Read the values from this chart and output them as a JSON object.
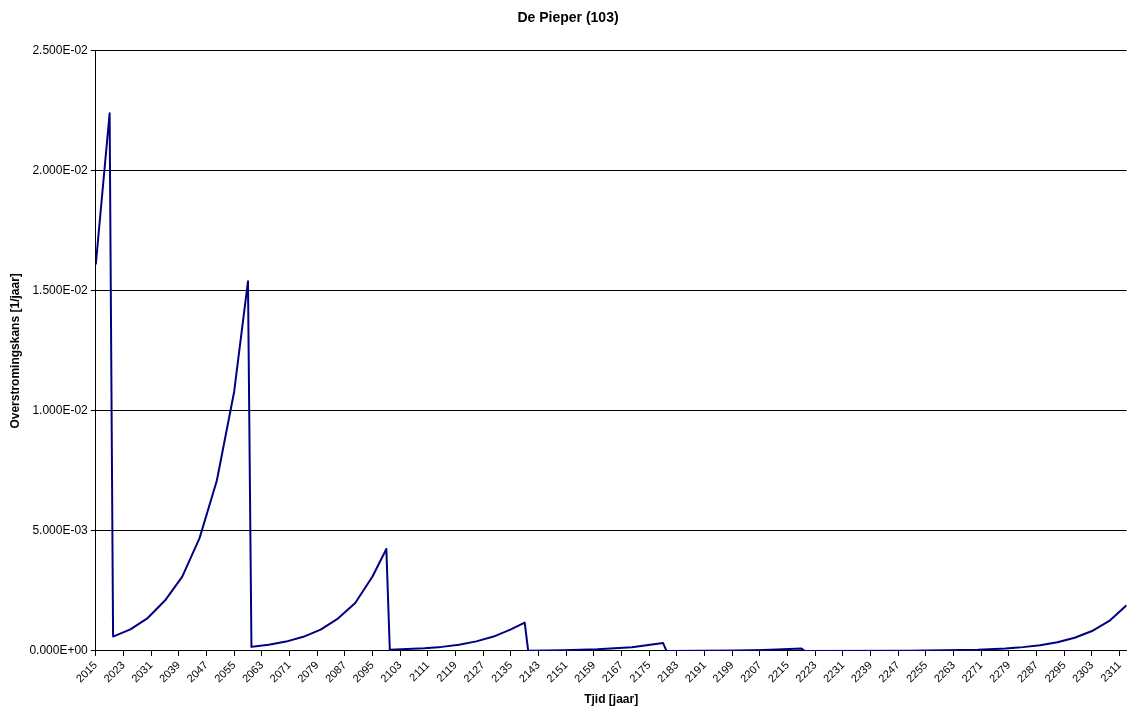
{
  "chart_data": {
    "type": "line",
    "title": "De Pieper (103)",
    "xlabel": "Tjid [jaar]",
    "ylabel": "Overstromingskans [1/jaar]",
    "x": [
      2015,
      2019,
      2020,
      2025,
      2030,
      2035,
      2040,
      2045,
      2050,
      2055,
      2059,
      2060,
      2065,
      2070,
      2075,
      2080,
      2085,
      2090,
      2095,
      2099,
      2100,
      2105,
      2110,
      2115,
      2120,
      2125,
      2130,
      2135,
      2139,
      2140,
      2150,
      2160,
      2170,
      2179,
      2180,
      2200,
      2210,
      2219,
      2220,
      2250,
      2270,
      2278,
      2283,
      2288,
      2293,
      2298,
      2303,
      2308,
      2313
    ],
    "series": [
      {
        "color": "#000080",
        "values": [
          0.0161,
          0.0224,
          0.0006,
          0.0009,
          0.00137,
          0.0021,
          0.0031,
          0.0047,
          0.0071,
          0.0108,
          0.0154,
          0.00017,
          0.00026,
          0.00039,
          0.00059,
          0.00089,
          0.00135,
          0.002,
          0.0031,
          0.00425,
          5e-05,
          8e-05,
          0.00011,
          0.00017,
          0.00026,
          0.0004,
          0.0006,
          0.0009,
          0.00118,
          1e-05,
          3e-05,
          7e-05,
          0.00015,
          0.00033,
          0,
          2e-05,
          5e-05,
          0.0001,
          0,
          1e-05,
          5e-05,
          0.0001,
          0.00016,
          0.00024,
          0.00036,
          0.00055,
          0.00083,
          0.00125,
          0.0019
        ]
      }
    ],
    "xlim": [
      2015,
      2313
    ],
    "xticks": [
      2015,
      2023,
      2031,
      2039,
      2047,
      2055,
      2063,
      2071,
      2079,
      2087,
      2095,
      2103,
      2111,
      2119,
      2127,
      2135,
      2143,
      2151,
      2159,
      2167,
      2175,
      2183,
      2191,
      2199,
      2207,
      2215,
      2223,
      2231,
      2239,
      2247,
      2255,
      2263,
      2271,
      2279,
      2287,
      2295,
      2303,
      2311
    ],
    "ylim": [
      0,
      0.025
    ],
    "yticks": [
      {
        "value": 0,
        "label": "0.000E+00"
      },
      {
        "value": 0.005,
        "label": "5.000E-03"
      },
      {
        "value": 0.01,
        "label": "1.000E-02"
      },
      {
        "value": 0.015,
        "label": "1.500E-02"
      },
      {
        "value": 0.02,
        "label": "2.000E-02"
      },
      {
        "value": 0.025,
        "label": "2.500E-02"
      }
    ],
    "grid": "y",
    "legend": false,
    "marker": "none",
    "line_style": "solid"
  }
}
